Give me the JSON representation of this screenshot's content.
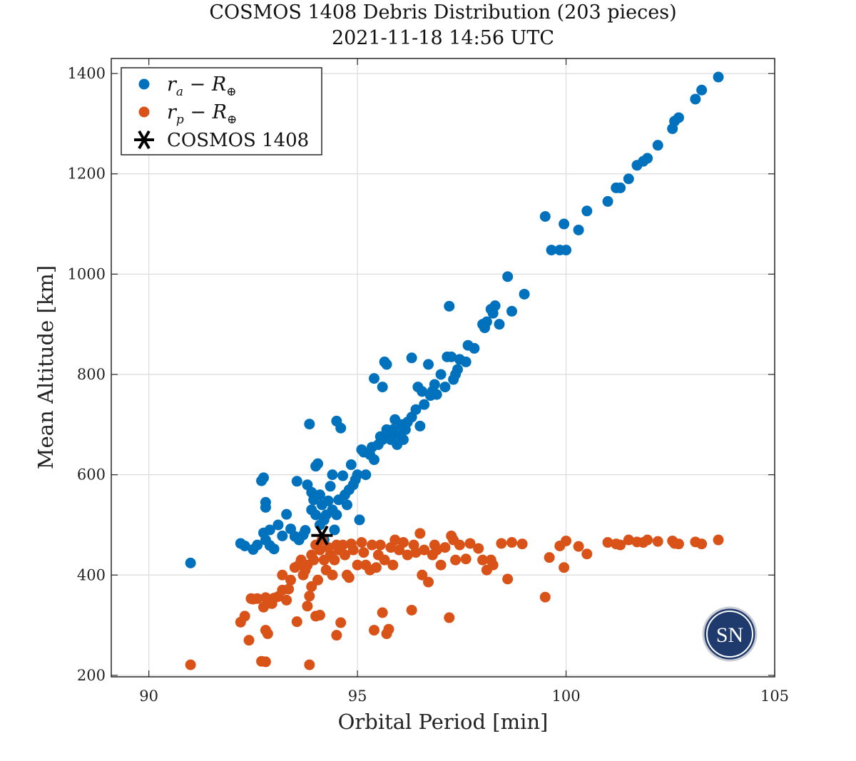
{
  "chart_data": {
    "type": "scatter",
    "title": "COSMOS 1408 Debris Distribution (203 pieces)",
    "subtitle": "2021-11-18 14:56 UTC",
    "xlabel": "Orbital Period [min]",
    "ylabel": "Mean Altitude [km]",
    "xlim": [
      89.1,
      105
    ],
    "ylim": [
      197,
      1430
    ],
    "xticks": [
      90,
      95,
      100,
      105
    ],
    "yticks": [
      200,
      400,
      600,
      800,
      1000,
      1200,
      1400
    ],
    "grid": true,
    "legend_position": "top-left",
    "colors": {
      "apogee": "#0072BD",
      "perigee": "#D95319",
      "cosmos": "#000000",
      "logo": "#1f3b6e"
    },
    "series": [
      {
        "name": "r_a − R_⊕",
        "legend_base": "r",
        "legend_sub": "a",
        "legend_rest": " − R",
        "legend_symbol": "⊕",
        "marker": "filled-circle",
        "points": [
          [
            91.0,
            424
          ],
          [
            92.2,
            463
          ],
          [
            92.3,
            458
          ],
          [
            92.5,
            451
          ],
          [
            92.6,
            460
          ],
          [
            92.7,
            588
          ],
          [
            92.75,
            594
          ],
          [
            92.8,
            545
          ],
          [
            92.8,
            535
          ],
          [
            92.75,
            484
          ],
          [
            92.8,
            470
          ],
          [
            92.9,
            490
          ],
          [
            92.9,
            459
          ],
          [
            93.0,
            452
          ],
          [
            93.1,
            500
          ],
          [
            93.2,
            478
          ],
          [
            93.3,
            521
          ],
          [
            93.4,
            492
          ],
          [
            93.5,
            477
          ],
          [
            93.55,
            587
          ],
          [
            93.6,
            470
          ],
          [
            93.7,
            480
          ],
          [
            93.75,
            489
          ],
          [
            93.8,
            580
          ],
          [
            93.85,
            701
          ],
          [
            93.9,
            565
          ],
          [
            93.9,
            530
          ],
          [
            93.95,
            550
          ],
          [
            94.0,
            520
          ],
          [
            94.0,
            617
          ],
          [
            94.05,
            622
          ],
          [
            94.1,
            560
          ],
          [
            94.1,
            500
          ],
          [
            94.15,
            540
          ],
          [
            94.2,
            470
          ],
          [
            94.2,
            510
          ],
          [
            94.25,
            520
          ],
          [
            94.3,
            548
          ],
          [
            94.35,
            577
          ],
          [
            94.4,
            530
          ],
          [
            94.4,
            600
          ],
          [
            94.45,
            490
          ],
          [
            94.5,
            520
          ],
          [
            94.5,
            707
          ],
          [
            94.55,
            550
          ],
          [
            94.6,
            693
          ],
          [
            94.65,
            598
          ],
          [
            94.7,
            560
          ],
          [
            94.75,
            540
          ],
          [
            94.8,
            570
          ],
          [
            94.85,
            620
          ],
          [
            94.9,
            580
          ],
          [
            94.95,
            590
          ],
          [
            95.0,
            600
          ],
          [
            95.05,
            510
          ],
          [
            95.1,
            650
          ],
          [
            95.15,
            645
          ],
          [
            95.2,
            600
          ],
          [
            95.3,
            640
          ],
          [
            95.35,
            655
          ],
          [
            95.4,
            630
          ],
          [
            95.4,
            792
          ],
          [
            95.5,
            660
          ],
          [
            95.55,
            676
          ],
          [
            95.6,
            775
          ],
          [
            95.6,
            670
          ],
          [
            95.65,
            825
          ],
          [
            95.7,
            820
          ],
          [
            95.7,
            690
          ],
          [
            95.75,
            680
          ],
          [
            95.8,
            670
          ],
          [
            95.85,
            690
          ],
          [
            95.9,
            710
          ],
          [
            95.95,
            660
          ],
          [
            96.0,
            680
          ],
          [
            96.05,
            700
          ],
          [
            96.1,
            670
          ],
          [
            96.15,
            690
          ],
          [
            96.2,
            705
          ],
          [
            96.3,
            833
          ],
          [
            96.3,
            715
          ],
          [
            96.4,
            730
          ],
          [
            96.45,
            775
          ],
          [
            96.5,
            697
          ],
          [
            96.55,
            766
          ],
          [
            96.6,
            740
          ],
          [
            96.7,
            820
          ],
          [
            96.75,
            758
          ],
          [
            96.8,
            767
          ],
          [
            96.85,
            780
          ],
          [
            96.9,
            760
          ],
          [
            97.0,
            800
          ],
          [
            97.1,
            775
          ],
          [
            97.15,
            835
          ],
          [
            97.2,
            936
          ],
          [
            97.25,
            835
          ],
          [
            97.3,
            790
          ],
          [
            97.35,
            800
          ],
          [
            97.4,
            810
          ],
          [
            97.45,
            830
          ],
          [
            97.6,
            825
          ],
          [
            97.65,
            858
          ],
          [
            97.8,
            852
          ],
          [
            98.0,
            900
          ],
          [
            98.05,
            893
          ],
          [
            98.1,
            905
          ],
          [
            98.2,
            930
          ],
          [
            98.25,
            922
          ],
          [
            98.3,
            937
          ],
          [
            98.4,
            900
          ],
          [
            98.6,
            995
          ],
          [
            98.7,
            926
          ],
          [
            99.0,
            960
          ],
          [
            99.5,
            1115
          ],
          [
            99.65,
            1048
          ],
          [
            99.85,
            1048
          ],
          [
            99.95,
            1100
          ],
          [
            100.0,
            1048
          ],
          [
            100.3,
            1088
          ],
          [
            100.5,
            1126
          ],
          [
            101.0,
            1145
          ],
          [
            101.2,
            1172
          ],
          [
            101.3,
            1172
          ],
          [
            101.5,
            1190
          ],
          [
            101.7,
            1217
          ],
          [
            101.85,
            1225
          ],
          [
            101.95,
            1231
          ],
          [
            102.2,
            1257
          ],
          [
            102.55,
            1290
          ],
          [
            102.6,
            1305
          ],
          [
            102.7,
            1312
          ],
          [
            103.1,
            1349
          ],
          [
            103.25,
            1367
          ],
          [
            103.65,
            1393
          ]
        ]
      },
      {
        "name": "r_p − R_⊕",
        "legend_base": "r",
        "legend_sub": "p",
        "legend_rest": " − R",
        "legend_symbol": "⊕",
        "marker": "filled-circle",
        "points": [
          [
            91.0,
            221
          ],
          [
            92.2,
            306
          ],
          [
            92.3,
            318
          ],
          [
            92.4,
            270
          ],
          [
            92.45,
            353
          ],
          [
            92.5,
            352
          ],
          [
            92.6,
            353
          ],
          [
            92.7,
            228
          ],
          [
            92.75,
            336
          ],
          [
            92.8,
            227
          ],
          [
            92.8,
            355
          ],
          [
            92.8,
            290
          ],
          [
            92.85,
            283
          ],
          [
            92.9,
            344
          ],
          [
            92.95,
            343
          ],
          [
            93.0,
            354
          ],
          [
            93.1,
            357
          ],
          [
            93.2,
            370
          ],
          [
            93.2,
            400
          ],
          [
            93.3,
            350
          ],
          [
            93.35,
            372
          ],
          [
            93.4,
            390
          ],
          [
            93.5,
            415
          ],
          [
            93.55,
            307
          ],
          [
            93.6,
            420
          ],
          [
            93.65,
            430
          ],
          [
            93.7,
            400
          ],
          [
            93.75,
            410
          ],
          [
            93.8,
            338
          ],
          [
            93.8,
            420
          ],
          [
            93.85,
            221
          ],
          [
            93.85,
            358
          ],
          [
            93.9,
            377
          ],
          [
            93.9,
            440
          ],
          [
            93.95,
            430
          ],
          [
            94.0,
            460
          ],
          [
            94.0,
            318
          ],
          [
            94.05,
            390
          ],
          [
            94.1,
            450
          ],
          [
            94.1,
            320
          ],
          [
            94.15,
            470
          ],
          [
            94.2,
            430
          ],
          [
            94.25,
            410
          ],
          [
            94.3,
            455
          ],
          [
            94.35,
            440
          ],
          [
            94.4,
            400
          ],
          [
            94.45,
            430
          ],
          [
            94.5,
            280
          ],
          [
            94.5,
            460
          ],
          [
            94.55,
            450
          ],
          [
            94.6,
            305
          ],
          [
            94.65,
            460
          ],
          [
            94.7,
            440
          ],
          [
            94.75,
            400
          ],
          [
            94.8,
            395
          ],
          [
            94.85,
            462
          ],
          [
            94.9,
            450
          ],
          [
            95.0,
            420
          ],
          [
            95.1,
            465
          ],
          [
            95.15,
            445
          ],
          [
            95.2,
            420
          ],
          [
            95.3,
            410
          ],
          [
            95.35,
            460
          ],
          [
            95.4,
            290
          ],
          [
            95.45,
            415
          ],
          [
            95.5,
            440
          ],
          [
            95.55,
            460
          ],
          [
            95.6,
            325
          ],
          [
            95.65,
            430
          ],
          [
            95.7,
            283
          ],
          [
            95.75,
            292
          ],
          [
            95.8,
            455
          ],
          [
            95.85,
            420
          ],
          [
            95.9,
            470
          ],
          [
            96.0,
            450
          ],
          [
            96.1,
            465
          ],
          [
            96.2,
            440
          ],
          [
            96.3,
            330
          ],
          [
            96.35,
            460
          ],
          [
            96.4,
            445
          ],
          [
            96.5,
            483
          ],
          [
            96.55,
            400
          ],
          [
            96.6,
            450
          ],
          [
            96.7,
            386
          ],
          [
            96.8,
            440
          ],
          [
            96.85,
            460
          ],
          [
            96.9,
            450
          ],
          [
            97.0,
            420
          ],
          [
            97.1,
            455
          ],
          [
            97.2,
            315
          ],
          [
            97.25,
            478
          ],
          [
            97.3,
            470
          ],
          [
            97.35,
            430
          ],
          [
            97.45,
            460
          ],
          [
            97.6,
            432
          ],
          [
            97.7,
            463
          ],
          [
            97.9,
            453
          ],
          [
            98.0,
            430
          ],
          [
            98.1,
            410
          ],
          [
            98.2,
            430
          ],
          [
            98.25,
            420
          ],
          [
            98.45,
            463
          ],
          [
            98.6,
            392
          ],
          [
            98.7,
            465
          ],
          [
            98.95,
            462
          ],
          [
            99.5,
            356
          ],
          [
            99.6,
            435
          ],
          [
            99.85,
            458
          ],
          [
            99.95,
            415
          ],
          [
            100.0,
            468
          ],
          [
            100.3,
            457
          ],
          [
            100.5,
            442
          ],
          [
            101.0,
            465
          ],
          [
            101.2,
            462
          ],
          [
            101.3,
            460
          ],
          [
            101.5,
            470
          ],
          [
            101.7,
            466
          ],
          [
            101.85,
            465
          ],
          [
            101.95,
            470
          ],
          [
            102.2,
            467
          ],
          [
            102.55,
            468
          ],
          [
            102.6,
            463
          ],
          [
            102.7,
            462
          ],
          [
            103.1,
            466
          ],
          [
            103.25,
            462
          ],
          [
            103.65,
            470
          ]
        ]
      },
      {
        "name": "COSMOS 1408",
        "marker": "asterisk",
        "points": [
          [
            94.15,
            479
          ]
        ]
      }
    ],
    "logo_text": "SN"
  }
}
